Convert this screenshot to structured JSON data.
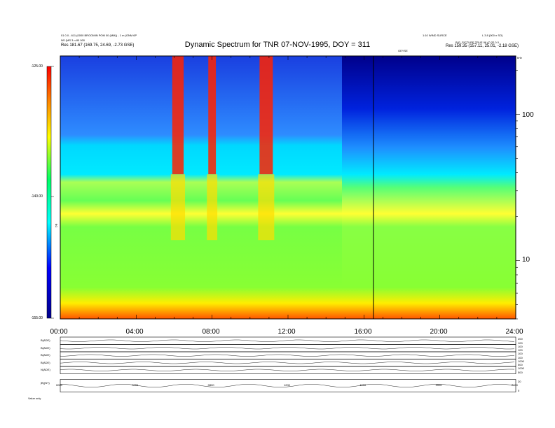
{
  "header": {
    "left_line1": "01 0.0 - 611 (0000 BROOMIN POM 00 (MM)) - 1 m (ONM 6P",
    "left_line2": "NS (MS 3 n 80 000",
    "left_line3": "Res   181.67 (169.75, 24.69, -2.73 GSE)",
    "right_line1": "1:10 WIND SURCE",
    "right_line2": "L 3 8 (000 n SO)",
    "right_line3": "BIG_PICTURE TRUE 96 (O.32 0 0",
    "right_line4": "Res   159.35 (157.11, 25.01, -2.18 GSE)",
    "unit_label": "GEYSE",
    "corner_label": "kHz"
  },
  "chart_data": {
    "type": "heatmap",
    "title": "Dynamic Spectrum for TNR 07-NOV-1995, DOY = 311",
    "x_tick_labels": [
      "00:00",
      "04:00",
      "08:00",
      "12:00",
      "16:00",
      "20:00",
      "24:00"
    ],
    "x_range_hours": [
      0,
      24
    ],
    "y_scale": "log",
    "y_tick_labels": [
      "100",
      "10"
    ],
    "y_range_khz": [
      4,
      250
    ],
    "colorbar_label": "DB",
    "colorbar_ticks": [
      "-125.00",
      "-140.00",
      "-155.00"
    ],
    "colorbar_range": [
      -155,
      -125
    ],
    "vertical_marker_hour": 16.5,
    "bands": [
      {
        "from_khz": 4,
        "to_khz": 6,
        "level": "red-orange"
      },
      {
        "from_khz": 6,
        "to_khz": 20,
        "level": "green"
      },
      {
        "from_khz": 20,
        "to_khz": 35,
        "level": "yellow-green"
      },
      {
        "from_khz": 35,
        "to_khz": 60,
        "level": "cyan"
      },
      {
        "from_khz": 60,
        "to_khz": 250,
        "level": "blue"
      }
    ],
    "bursts": [
      {
        "start_hour": 5.9,
        "end_hour": 6.5,
        "level": "red"
      },
      {
        "start_hour": 7.8,
        "end_hour": 8.2,
        "level": "red"
      },
      {
        "start_hour": 10.5,
        "end_hour": 11.2,
        "level": "red"
      }
    ],
    "panels": [
      {
        "label": "B(ADE)",
        "right_ticks": [
          "200",
          "100"
        ]
      },
      {
        "label": "B(ADE)",
        "right_ticks": [
          "100",
          "100"
        ]
      },
      {
        "label": "B(ADE)",
        "right_ticks": [
          "100",
          "100"
        ]
      },
      {
        "label": "B(ADE)",
        "right_ticks": [
          "1000",
          "500"
        ]
      },
      {
        "label": "N(ADE)",
        "right_ticks": [
          "1000",
          "500"
        ]
      },
      {
        "label": "|B|(NT)",
        "right_ticks": [
          "20",
          "0"
        ]
      }
    ],
    "panel_x_tick_labels": [
      "0000",
      "0400",
      "0800",
      "1200",
      "1600",
      "2000",
      "2400"
    ],
    "panel_footer_left": "Value  only"
  }
}
